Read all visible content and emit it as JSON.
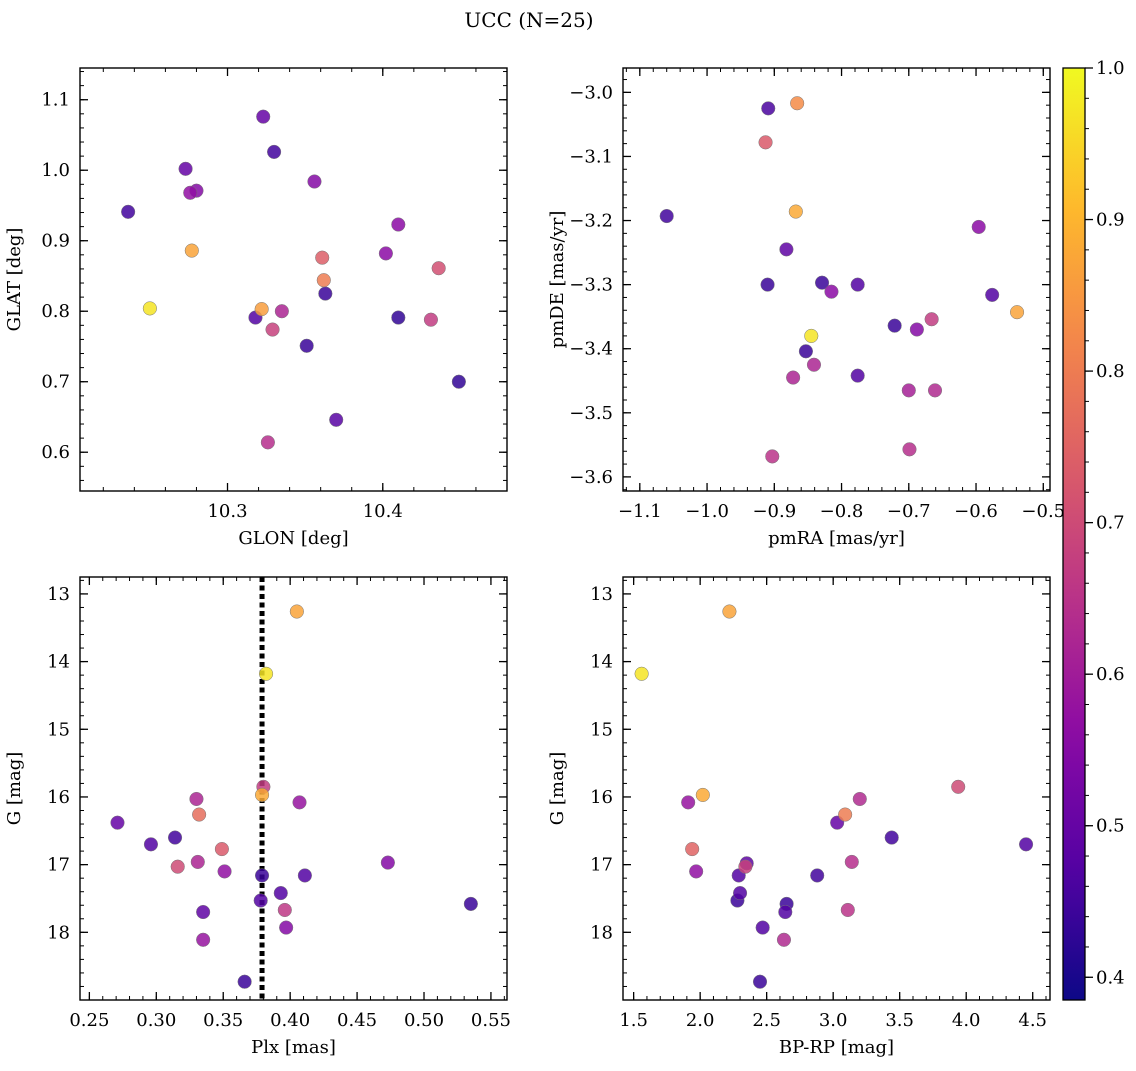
{
  "figure": {
    "title": "UCC (N=25)"
  },
  "colorbar": {
    "range": [
      0.385,
      1.0
    ],
    "ticks": [
      0.4,
      0.5,
      0.6,
      0.7,
      0.8,
      0.9,
      1.0
    ],
    "tick_labels": [
      "0.4",
      "0.5",
      "0.6",
      "0.7",
      "0.8",
      "0.9",
      "1.0"
    ],
    "colormap": "plasma (dark violet to yellow)"
  },
  "chart_data": [
    {
      "type": "scatter",
      "panel": "top-left",
      "xlabel": "GLON [deg]",
      "ylabel": "GLAT [deg]",
      "xlim": [
        10.205,
        10.48
      ],
      "ylim": [
        0.545,
        1.145
      ],
      "xticks": [
        10.3,
        10.4
      ],
      "xtick_labels": [
        "10.3",
        "10.4"
      ],
      "yticks": [
        0.6,
        0.7,
        0.8,
        0.9,
        1.0,
        1.1
      ],
      "ytick_labels": [
        "0.6",
        "0.7",
        "0.8",
        "0.9",
        "1.0",
        "1.1"
      ],
      "x": [
        10.25,
        10.236,
        10.273,
        10.276,
        10.28,
        10.277,
        10.323,
        10.322,
        10.33,
        10.356,
        10.329,
        10.335,
        10.318,
        10.351,
        10.361,
        10.362,
        10.363,
        10.402,
        10.41,
        10.41,
        10.436,
        10.431,
        10.449,
        10.37,
        10.326
      ],
      "y": [
        0.804,
        0.941,
        1.002,
        0.968,
        0.971,
        0.886,
        1.076,
        0.803,
        1.026,
        0.984,
        0.774,
        0.8,
        0.791,
        0.751,
        0.876,
        0.844,
        0.825,
        0.882,
        0.923,
        0.791,
        0.861,
        0.788,
        0.7,
        0.646,
        0.614
      ],
      "c": [
        0.97,
        0.45,
        0.5,
        0.57,
        0.55,
        0.87,
        0.5,
        0.86,
        0.45,
        0.55,
        0.68,
        0.62,
        0.47,
        0.44,
        0.74,
        0.8,
        0.44,
        0.56,
        0.56,
        0.43,
        0.71,
        0.67,
        0.43,
        0.48,
        0.64
      ]
    },
    {
      "type": "scatter",
      "panel": "top-right",
      "xlabel": "pmRA [mas/yr]",
      "ylabel": "pmDE [mas/yr]",
      "xlim": [
        -1.125,
        -0.49
      ],
      "ylim": [
        -3.622,
        -2.962
      ],
      "xticks": [
        -1.1,
        -1.0,
        -0.9,
        -0.8,
        -0.7,
        -0.6,
        -0.5
      ],
      "xtick_labels": [
        "−1.1",
        "−1.0",
        "−0.9",
        "−0.8",
        "−0.7",
        "−0.6",
        "−0.5"
      ],
      "yticks": [
        -3.6,
        -3.5,
        -3.4,
        -3.3,
        -3.2,
        -3.1,
        -3.0
      ],
      "ytick_labels": [
        "−3.6",
        "−3.5",
        "−3.4",
        "−3.3",
        "−3.2",
        "−3.1",
        "−3.0"
      ],
      "x": [
        -1.06,
        -0.909,
        -0.866,
        -0.913,
        -0.868,
        -0.882,
        -0.91,
        -0.829,
        -0.815,
        -0.776,
        -0.721,
        -0.688,
        -0.666,
        -0.7,
        -0.661,
        -0.596,
        -0.576,
        -0.539,
        -0.845,
        -0.853,
        -0.872,
        -0.841,
        -0.776,
        -0.699,
        -0.903
      ],
      "y": [
        -3.193,
        -3.025,
        -3.017,
        -3.078,
        -3.186,
        -3.245,
        -3.3,
        -3.297,
        -3.311,
        -3.3,
        -3.364,
        -3.37,
        -3.354,
        -3.465,
        -3.465,
        -3.21,
        -3.316,
        -3.343,
        -3.38,
        -3.404,
        -3.445,
        -3.425,
        -3.442,
        -3.557,
        -3.568
      ],
      "c": [
        0.45,
        0.46,
        0.83,
        0.73,
        0.88,
        0.49,
        0.44,
        0.44,
        0.56,
        0.47,
        0.44,
        0.55,
        0.67,
        0.61,
        0.63,
        0.56,
        0.47,
        0.87,
        0.97,
        0.44,
        0.62,
        0.62,
        0.47,
        0.64,
        0.65
      ]
    },
    {
      "type": "scatter",
      "panel": "bottom-left",
      "xlabel": "Plx [mas]",
      "ylabel": "G [mag]",
      "xlim": [
        0.243,
        0.562
      ],
      "ylim": [
        19.0,
        12.75
      ],
      "y_inverted": true,
      "xticks": [
        0.25,
        0.3,
        0.35,
        0.4,
        0.45,
        0.5,
        0.55
      ],
      "xtick_labels": [
        "0.25",
        "0.30",
        "0.35",
        "0.40",
        "0.45",
        "0.50",
        "0.55"
      ],
      "yticks": [
        13,
        14,
        15,
        16,
        17,
        18
      ],
      "ytick_labels": [
        "13",
        "14",
        "15",
        "16",
        "17",
        "18"
      ],
      "vline": {
        "x": 0.379,
        "style": "dotted"
      },
      "x": [
        0.405,
        0.382,
        0.38,
        0.379,
        0.407,
        0.33,
        0.332,
        0.271,
        0.296,
        0.314,
        0.349,
        0.331,
        0.316,
        0.351,
        0.379,
        0.411,
        0.473,
        0.378,
        0.393,
        0.396,
        0.335,
        0.397,
        0.335,
        0.535,
        0.366
      ],
      "y": [
        13.26,
        14.18,
        15.85,
        15.97,
        16.08,
        16.03,
        16.26,
        16.38,
        16.7,
        16.6,
        16.77,
        16.96,
        17.03,
        17.1,
        17.16,
        17.16,
        16.97,
        17.53,
        17.42,
        17.67,
        17.7,
        17.93,
        18.11,
        17.58,
        18.73
      ],
      "c": [
        0.87,
        0.97,
        0.67,
        0.88,
        0.58,
        0.62,
        0.77,
        0.5,
        0.47,
        0.45,
        0.73,
        0.62,
        0.7,
        0.57,
        0.44,
        0.47,
        0.55,
        0.47,
        0.47,
        0.66,
        0.49,
        0.55,
        0.58,
        0.44,
        0.44
      ]
    },
    {
      "type": "scatter",
      "panel": "bottom-right",
      "xlabel": "BP-RP [mag]",
      "ylabel": "G [mag]",
      "xlim": [
        1.42,
        4.63
      ],
      "ylim": [
        19.0,
        12.75
      ],
      "y_inverted": true,
      "xticks": [
        1.5,
        2.0,
        2.5,
        3.0,
        3.5,
        4.0,
        4.5
      ],
      "xtick_labels": [
        "1.5",
        "2.0",
        "2.5",
        "3.0",
        "3.5",
        "4.0",
        "4.5"
      ],
      "yticks": [
        13,
        14,
        15,
        16,
        17,
        18
      ],
      "ytick_labels": [
        "13",
        "14",
        "15",
        "16",
        "17",
        "18"
      ],
      "x": [
        2.22,
        1.56,
        2.02,
        1.91,
        1.94,
        1.97,
        2.35,
        2.34,
        2.29,
        2.28,
        2.3,
        2.47,
        2.65,
        2.64,
        2.63,
        2.45,
        2.88,
        3.03,
        3.09,
        3.14,
        3.2,
        3.11,
        3.44,
        3.94,
        4.45
      ],
      "y": [
        13.26,
        14.18,
        15.97,
        16.08,
        16.77,
        17.1,
        16.98,
        17.03,
        17.16,
        17.53,
        17.42,
        17.93,
        17.58,
        17.7,
        18.11,
        18.73,
        17.16,
        16.38,
        16.26,
        16.96,
        16.03,
        17.67,
        16.6,
        15.85,
        16.7
      ],
      "c": [
        0.87,
        0.97,
        0.88,
        0.58,
        0.75,
        0.57,
        0.49,
        0.68,
        0.47,
        0.44,
        0.47,
        0.47,
        0.44,
        0.47,
        0.63,
        0.44,
        0.45,
        0.5,
        0.8,
        0.64,
        0.63,
        0.65,
        0.45,
        0.7,
        0.47
      ]
    }
  ]
}
